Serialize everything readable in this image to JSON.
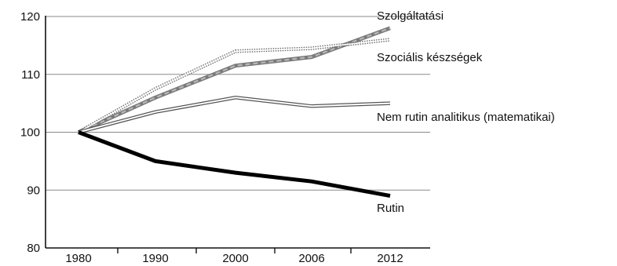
{
  "chart_data": {
    "type": "line",
    "title": "",
    "xlabel": "",
    "ylabel": "",
    "x": [
      "1980",
      "1990",
      "2000",
      "2006",
      "2012"
    ],
    "ylim": [
      80,
      120
    ],
    "yticks": [
      80,
      90,
      100,
      110,
      120
    ],
    "grid": "horizontal",
    "series": [
      {
        "name": "Szolgáltatási",
        "values": [
          100,
          106,
          111.5,
          113,
          118
        ],
        "style": "dashed-gray-thick"
      },
      {
        "name": "Szociális készségek",
        "values": [
          100,
          107.5,
          114,
          114.5,
          116
        ],
        "style": "dotted-double"
      },
      {
        "name": "Nem rutin analitikus (matematikai)",
        "values": [
          100,
          103.5,
          106,
          104.5,
          105
        ],
        "style": "double-outline"
      },
      {
        "name": "Rutin",
        "values": [
          100,
          95,
          93,
          91.5,
          89
        ],
        "style": "solid-black-thick"
      }
    ],
    "legend": "inline-right"
  }
}
